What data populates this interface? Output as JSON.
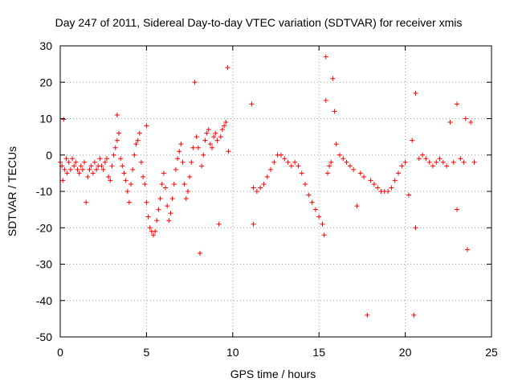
{
  "chart_data": {
    "type": "scatter",
    "title": "Day 247 of 2011, Sidereal Day-to-day VTEC variation (SDTVAR) for receiver xmis",
    "xlabel": "GPS time / hours",
    "ylabel": "SDTVAR / TECUs",
    "xlim": [
      0,
      25
    ],
    "ylim": [
      -50,
      30
    ],
    "xticks": [
      0,
      5,
      10,
      15,
      20,
      25
    ],
    "yticks": [
      -50,
      -40,
      -30,
      -20,
      -10,
      0,
      10,
      20,
      30
    ],
    "xtick_labels": [
      "0",
      "5",
      "10",
      "15",
      "20",
      "25"
    ],
    "ytick_labels": [
      "-50",
      "-40",
      "-30",
      "-20",
      "-10",
      "0",
      "10",
      "20",
      "30"
    ],
    "grid": true,
    "marker": "+",
    "color": "#ff0000",
    "series": [
      {
        "name": "xmis",
        "points": [
          [
            0.0,
            -2
          ],
          [
            0.1,
            -3
          ],
          [
            0.15,
            -7
          ],
          [
            0.2,
            9.8
          ],
          [
            0.25,
            -4
          ],
          [
            0.35,
            -1
          ],
          [
            0.4,
            -5
          ],
          [
            0.5,
            -2
          ],
          [
            0.6,
            -4
          ],
          [
            0.7,
            -1
          ],
          [
            0.8,
            -3
          ],
          [
            0.9,
            -2
          ],
          [
            1.0,
            -4
          ],
          [
            1.1,
            -5
          ],
          [
            1.2,
            -3
          ],
          [
            1.3,
            -4
          ],
          [
            1.4,
            -2
          ],
          [
            1.5,
            -13
          ],
          [
            1.6,
            -6
          ],
          [
            1.7,
            -4
          ],
          [
            1.8,
            -3
          ],
          [
            1.9,
            -5
          ],
          [
            2.0,
            -2
          ],
          [
            2.1,
            -4
          ],
          [
            2.2,
            -3
          ],
          [
            2.3,
            -1
          ],
          [
            2.4,
            -3
          ],
          [
            2.5,
            -4
          ],
          [
            2.6,
            -2
          ],
          [
            2.7,
            -1
          ],
          [
            2.8,
            -6
          ],
          [
            2.9,
            -7
          ],
          [
            3.0,
            -3
          ],
          [
            3.1,
            0
          ],
          [
            3.2,
            2
          ],
          [
            3.3,
            11
          ],
          [
            3.3,
            4
          ],
          [
            3.4,
            6
          ],
          [
            3.5,
            -1
          ],
          [
            3.6,
            -3
          ],
          [
            3.7,
            -5
          ],
          [
            3.8,
            -7
          ],
          [
            3.9,
            -10
          ],
          [
            4.0,
            -13
          ],
          [
            4.1,
            -8
          ],
          [
            4.2,
            -4
          ],
          [
            4.3,
            0
          ],
          [
            4.4,
            3
          ],
          [
            4.5,
            4
          ],
          [
            4.6,
            6
          ],
          [
            4.7,
            -2
          ],
          [
            4.8,
            -6
          ],
          [
            4.9,
            -8
          ],
          [
            5.0,
            8
          ],
          [
            5.0,
            -13
          ],
          [
            5.1,
            -17
          ],
          [
            5.2,
            -20
          ],
          [
            5.3,
            -21
          ],
          [
            5.4,
            -22
          ],
          [
            5.5,
            -21
          ],
          [
            5.6,
            -18
          ],
          [
            5.7,
            -15
          ],
          [
            5.8,
            -12
          ],
          [
            5.9,
            -8
          ],
          [
            6.0,
            -5
          ],
          [
            6.1,
            -9
          ],
          [
            6.2,
            -14
          ],
          [
            6.3,
            -18
          ],
          [
            6.4,
            -16
          ],
          [
            6.5,
            -12
          ],
          [
            6.6,
            -8
          ],
          [
            6.7,
            -4
          ],
          [
            6.8,
            -1
          ],
          [
            6.9,
            1
          ],
          [
            7.0,
            3
          ],
          [
            7.1,
            -2
          ],
          [
            7.2,
            -8
          ],
          [
            7.3,
            -12
          ],
          [
            7.4,
            -10
          ],
          [
            7.5,
            -6
          ],
          [
            7.6,
            -2
          ],
          [
            7.7,
            2
          ],
          [
            7.8,
            20
          ],
          [
            7.9,
            5
          ],
          [
            8.0,
            2
          ],
          [
            8.1,
            -27
          ],
          [
            8.2,
            -3
          ],
          [
            8.3,
            0
          ],
          [
            8.4,
            4
          ],
          [
            8.5,
            6
          ],
          [
            8.6,
            7
          ],
          [
            8.7,
            3
          ],
          [
            8.8,
            2
          ],
          [
            8.9,
            5
          ],
          [
            9.0,
            6
          ],
          [
            9.1,
            4
          ],
          [
            9.2,
            -19
          ],
          [
            9.3,
            5
          ],
          [
            9.4,
            7
          ],
          [
            9.5,
            8
          ],
          [
            9.6,
            9
          ],
          [
            9.7,
            24
          ],
          [
            9.75,
            1
          ],
          [
            11.1,
            14
          ],
          [
            11.2,
            -19
          ],
          [
            11.2,
            -9
          ],
          [
            11.4,
            -10
          ],
          [
            11.6,
            -9
          ],
          [
            11.8,
            -8
          ],
          [
            12.0,
            -6
          ],
          [
            12.2,
            -4
          ],
          [
            12.4,
            -2
          ],
          [
            12.6,
            0
          ],
          [
            12.8,
            0
          ],
          [
            13.0,
            -1
          ],
          [
            13.2,
            -2
          ],
          [
            13.4,
            -3
          ],
          [
            13.6,
            -2
          ],
          [
            13.8,
            -3
          ],
          [
            14.0,
            -5
          ],
          [
            14.2,
            -8
          ],
          [
            14.4,
            -11
          ],
          [
            14.6,
            -13
          ],
          [
            14.8,
            -15
          ],
          [
            15.0,
            -17
          ],
          [
            15.2,
            -19
          ],
          [
            15.3,
            -22
          ],
          [
            15.4,
            27
          ],
          [
            15.4,
            15
          ],
          [
            15.5,
            -5
          ],
          [
            15.6,
            -3
          ],
          [
            15.7,
            -2
          ],
          [
            15.8,
            21
          ],
          [
            15.9,
            12
          ],
          [
            16.0,
            3
          ],
          [
            16.2,
            0
          ],
          [
            16.4,
            -1
          ],
          [
            16.6,
            -2
          ],
          [
            16.8,
            -3
          ],
          [
            17.0,
            -4
          ],
          [
            17.2,
            -14
          ],
          [
            17.4,
            -5
          ],
          [
            17.6,
            -6
          ],
          [
            17.8,
            -44
          ],
          [
            18.0,
            -7
          ],
          [
            18.2,
            -8
          ],
          [
            18.4,
            -9
          ],
          [
            18.6,
            -10
          ],
          [
            18.8,
            -10
          ],
          [
            19.0,
            -10
          ],
          [
            19.2,
            -9
          ],
          [
            19.4,
            -7
          ],
          [
            19.6,
            -5
          ],
          [
            19.8,
            -3
          ],
          [
            20.0,
            -2
          ],
          [
            20.2,
            -11
          ],
          [
            20.4,
            4
          ],
          [
            20.5,
            -44
          ],
          [
            20.6,
            17
          ],
          [
            20.6,
            -20
          ],
          [
            20.8,
            -1
          ],
          [
            21.0,
            0
          ],
          [
            21.2,
            -1
          ],
          [
            21.4,
            -2
          ],
          [
            21.6,
            -3
          ],
          [
            21.8,
            -2
          ],
          [
            22.0,
            -1
          ],
          [
            22.2,
            -2
          ],
          [
            22.4,
            -3
          ],
          [
            22.6,
            9
          ],
          [
            22.8,
            -2
          ],
          [
            23.0,
            14
          ],
          [
            23.0,
            -15
          ],
          [
            23.2,
            -1
          ],
          [
            23.4,
            -2
          ],
          [
            23.5,
            10
          ],
          [
            23.6,
            -26
          ],
          [
            23.8,
            9
          ],
          [
            24.0,
            -2
          ]
        ]
      }
    ]
  }
}
